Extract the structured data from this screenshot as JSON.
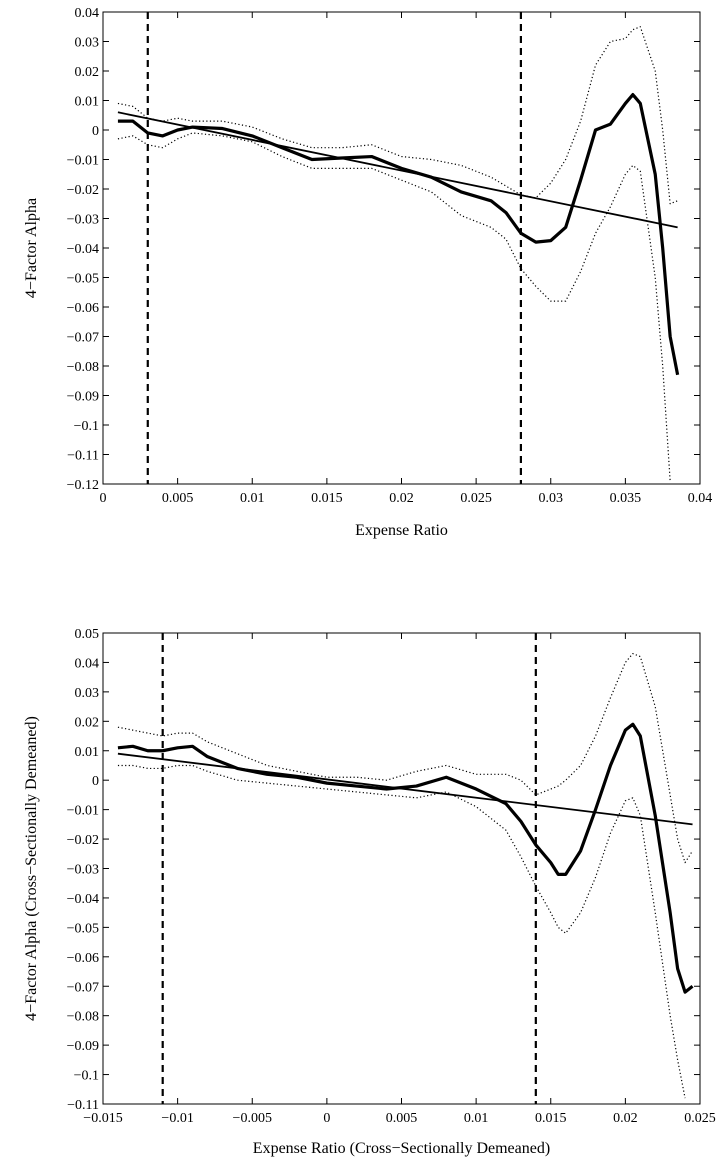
{
  "chart_data": [
    {
      "type": "line",
      "xlabel": "Expense Ratio",
      "ylabel": "4−Factor Alpha",
      "xlim": [
        0,
        0.04
      ],
      "ylim": [
        -0.12,
        0.04
      ],
      "xticks": [
        0,
        0.005,
        0.01,
        0.015,
        0.02,
        0.025,
        0.03,
        0.035,
        0.04
      ],
      "yticks": [
        0.04,
        0.03,
        0.02,
        0.01,
        0,
        {
          "value": -0.01,
          "label": "−0.01"
        },
        {
          "value": -0.02,
          "label": "−0.02"
        },
        {
          "value": -0.03,
          "label": "−0.03"
        },
        {
          "value": -0.04,
          "label": "−0.04"
        },
        {
          "value": -0.05,
          "label": "−0.05"
        },
        {
          "value": -0.06,
          "label": "−0.06"
        },
        {
          "value": -0.07,
          "label": "−0.07"
        },
        {
          "value": -0.08,
          "label": "−0.08"
        },
        {
          "value": -0.09,
          "label": "−0.09"
        },
        {
          "value": -0.1,
          "label": "−0.1"
        },
        {
          "value": -0.11,
          "label": "−0.11"
        },
        {
          "value": -0.12,
          "label": "−0.12"
        }
      ],
      "vlines": [
        0.003,
        0.028
      ],
      "x": [
        0.001,
        0.002,
        0.003,
        0.004,
        0.005,
        0.006,
        0.008,
        0.01,
        0.012,
        0.014,
        0.016,
        0.018,
        0.02,
        0.022,
        0.024,
        0.026,
        0.027,
        0.028,
        0.029,
        0.03,
        0.031,
        0.032,
        0.033,
        0.034,
        0.035,
        0.0355,
        0.036,
        0.037,
        0.0375,
        0.038,
        0.0385
      ],
      "series": [
        {
          "style": "thick",
          "color": "#000",
          "values": [
            0.003,
            0.003,
            -0.001,
            -0.002,
            0,
            0.001,
            0.0005,
            -0.002,
            -0.006,
            -0.01,
            -0.0095,
            -0.009,
            -0.013,
            -0.016,
            -0.021,
            -0.024,
            -0.028,
            -0.035,
            -0.038,
            -0.0375,
            -0.033,
            -0.017,
            0,
            0.002,
            0.009,
            0.012,
            0.009,
            -0.015,
            -0.04,
            -0.07,
            -0.083
          ]
        },
        {
          "style": "dotted",
          "color": "#000",
          "values": [
            0.009,
            0.008,
            0.004,
            0.003,
            0.004,
            0.003,
            0.003,
            0.001,
            -0.003,
            -0.006,
            -0.006,
            -0.005,
            -0.009,
            -0.01,
            -0.012,
            -0.016,
            -0.019,
            -0.022,
            -0.023,
            -0.018,
            -0.01,
            0.003,
            0.022,
            0.03,
            0.031,
            0.034,
            0.035,
            0.02,
            0.0,
            -0.025,
            -0.024
          ]
        },
        {
          "style": "dotted",
          "color": "#000",
          "values": [
            -0.003,
            -0.002,
            -0.005,
            -0.006,
            -0.003,
            -0.001,
            -0.002,
            -0.004,
            -0.009,
            -0.013,
            -0.013,
            -0.013,
            -0.017,
            -0.021,
            -0.029,
            -0.033,
            -0.037,
            -0.047,
            -0.053,
            -0.058,
            -0.058,
            -0.048,
            -0.035,
            -0.026,
            -0.015,
            -0.012,
            -0.014,
            -0.05,
            -0.08,
            -0.119,
            null
          ]
        }
      ],
      "fit": {
        "color": "#000",
        "x": [
          0.001,
          0.0385
        ],
        "values": [
          0.006,
          -0.033
        ]
      }
    },
    {
      "type": "line",
      "xlabel": "Expense Ratio (Cross−Sectionally Demeaned)",
      "ylabel": "4−Factor Alpha (Cross−Sectionally Demeaned)",
      "xlim": [
        -0.015,
        0.025
      ],
      "ylim": [
        -0.11,
        0.05
      ],
      "xticks": [
        {
          "value": -0.015,
          "label": "−0.015"
        },
        {
          "value": -0.01,
          "label": "−0.01"
        },
        {
          "value": -0.005,
          "label": "−0.005"
        },
        0,
        0.005,
        0.01,
        0.015,
        0.02,
        0.025
      ],
      "yticks": [
        0.05,
        0.04,
        0.03,
        0.02,
        0.01,
        0,
        {
          "value": -0.01,
          "label": "−0.01"
        },
        {
          "value": -0.02,
          "label": "−0.02"
        },
        {
          "value": -0.03,
          "label": "−0.03"
        },
        {
          "value": -0.04,
          "label": "−0.04"
        },
        {
          "value": -0.05,
          "label": "−0.05"
        },
        {
          "value": -0.06,
          "label": "−0.06"
        },
        {
          "value": -0.07,
          "label": "−0.07"
        },
        {
          "value": -0.08,
          "label": "−0.08"
        },
        {
          "value": -0.09,
          "label": "−0.09"
        },
        {
          "value": -0.1,
          "label": "−0.1"
        },
        {
          "value": -0.11,
          "label": "−0.11"
        }
      ],
      "vlines": [
        -0.011,
        0.014
      ],
      "x": [
        -0.014,
        -0.013,
        -0.012,
        -0.011,
        -0.01,
        -0.009,
        -0.008,
        -0.006,
        -0.004,
        -0.002,
        0,
        0.002,
        0.004,
        0.006,
        0.008,
        0.01,
        0.012,
        0.013,
        0.014,
        0.015,
        0.0155,
        0.016,
        0.017,
        0.018,
        0.019,
        0.02,
        0.0205,
        0.021,
        0.022,
        0.023,
        0.0235,
        0.024,
        0.0245
      ],
      "series": [
        {
          "style": "thick",
          "color": "#000",
          "values": [
            0.011,
            0.0115,
            0.01,
            0.01,
            0.011,
            0.0115,
            0.008,
            0.004,
            0.002,
            0.001,
            -0.001,
            -0.002,
            -0.003,
            -0.002,
            0.001,
            -0.003,
            -0.008,
            -0.014,
            -0.022,
            -0.028,
            -0.032,
            -0.032,
            -0.024,
            -0.01,
            0.005,
            0.017,
            0.019,
            0.015,
            -0.012,
            -0.045,
            -0.064,
            -0.072,
            -0.07
          ]
        },
        {
          "style": "dotted",
          "color": "#000",
          "values": [
            0.018,
            0.017,
            0.016,
            0.015,
            0.016,
            0.016,
            0.013,
            0.009,
            0.005,
            0.003,
            0.001,
            0.001,
            0.0,
            0.003,
            0.005,
            0.002,
            0.002,
            0.0,
            -0.005,
            -0.003,
            -0.002,
            0.0,
            0.005,
            0.015,
            0.028,
            0.04,
            0.043,
            0.042,
            0.025,
            -0.005,
            -0.02,
            -0.028,
            -0.024
          ]
        },
        {
          "style": "dotted",
          "color": "#000",
          "values": [
            0.005,
            0.005,
            0.004,
            0.004,
            0.005,
            0.005,
            0.003,
            0.0,
            -0.001,
            -0.002,
            -0.003,
            -0.004,
            -0.005,
            -0.006,
            -0.004,
            -0.009,
            -0.017,
            -0.026,
            -0.036,
            -0.045,
            -0.05,
            -0.052,
            -0.045,
            -0.033,
            -0.018,
            -0.007,
            -0.006,
            -0.012,
            -0.045,
            -0.08,
            -0.095,
            -0.108,
            null
          ]
        }
      ],
      "fit": {
        "color": "#000",
        "x": [
          -0.014,
          0.0245
        ],
        "values": [
          0.009,
          -0.015
        ]
      }
    }
  ]
}
